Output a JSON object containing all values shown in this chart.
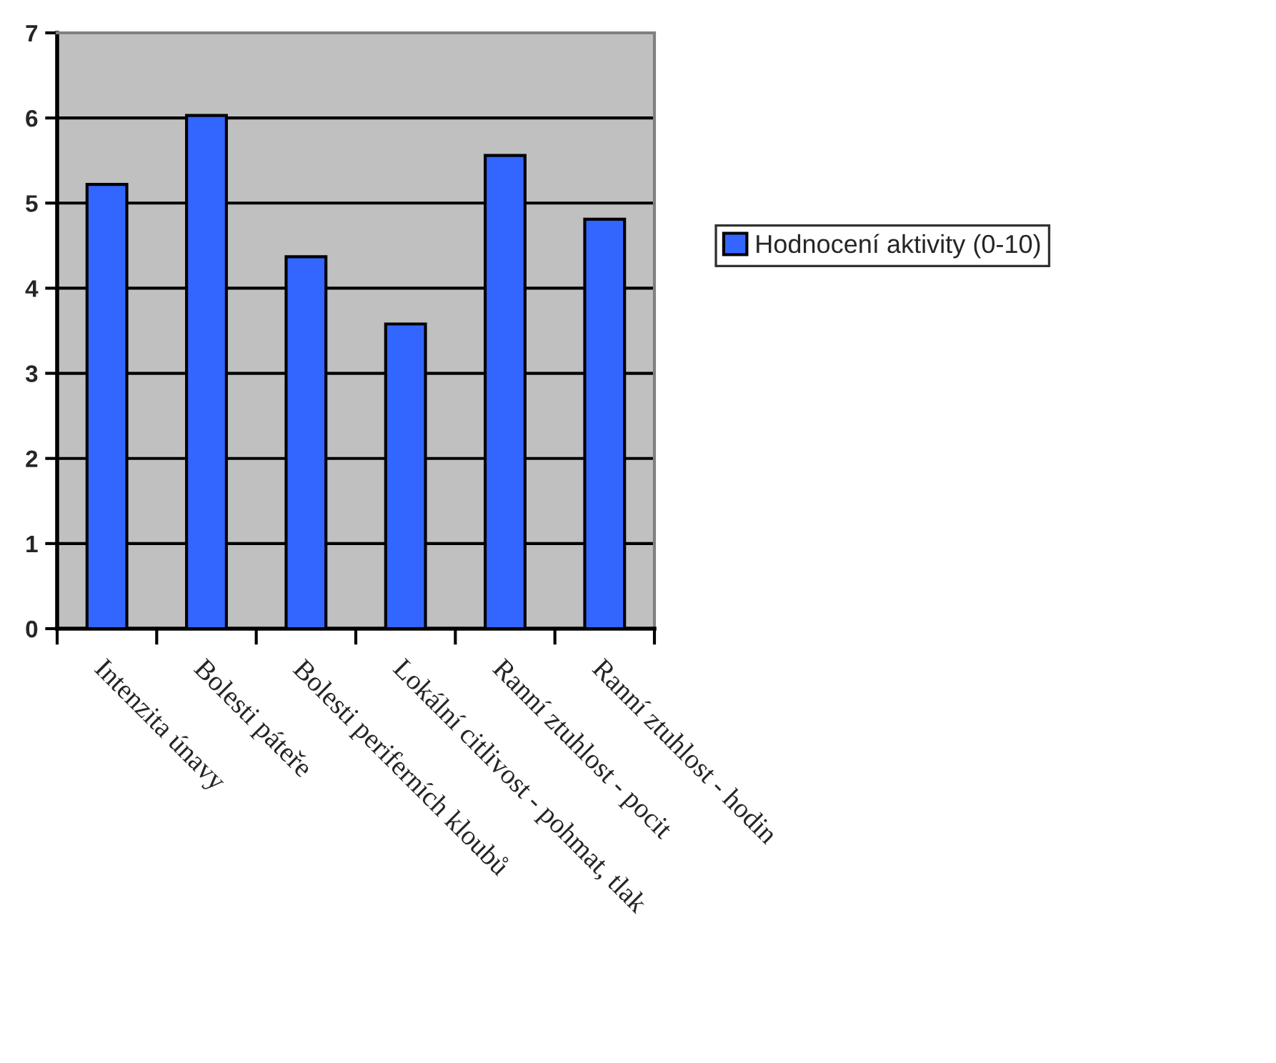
{
  "chart_data": {
    "type": "bar",
    "categories": [
      "Intenzita únavy",
      "Bolesti páteře",
      "Bolesti periferních kloubů",
      "Lokální citlivost - pohmat, tlak",
      "Ranní ztuhlost - pocit",
      "Ranní ztuhlost - hodin"
    ],
    "series": [
      {
        "name": "Hodnocení aktivity (0-10)",
        "color": "#3366ff",
        "values": [
          5.22,
          6.03,
          4.37,
          3.58,
          5.56,
          4.81
        ]
      }
    ],
    "ylim": [
      0,
      7
    ],
    "yticks": [
      0,
      1,
      2,
      3,
      4,
      5,
      6,
      7
    ],
    "grid": "y",
    "legend": "right"
  }
}
